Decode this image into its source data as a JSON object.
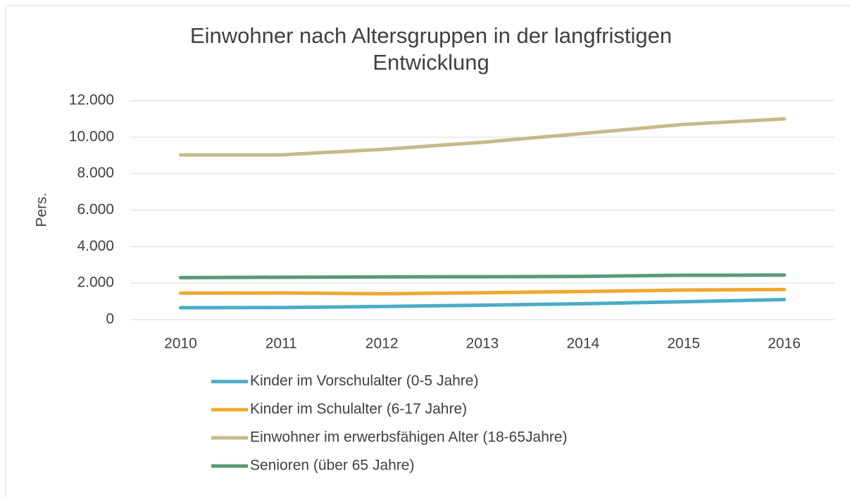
{
  "chart_data": {
    "type": "line",
    "title": "Einwohner nach Altersgruppen in der langfristigen Entwicklung",
    "y_label": "Pers.",
    "categories": [
      "2010",
      "2011",
      "2012",
      "2013",
      "2014",
      "2015",
      "2016"
    ],
    "series": [
      {
        "name": "Kinder im Vorschulalter (0-5 Jahre)",
        "color": "#4bacc6",
        "values": [
          650,
          660,
          720,
          790,
          870,
          980,
          1100
        ]
      },
      {
        "name": "Kinder im Schulalter (6-17 Jahre)",
        "color": "#f0a830",
        "values": [
          1450,
          1460,
          1420,
          1470,
          1540,
          1620,
          1650
        ]
      },
      {
        "name": "Einwohner im erwerbsfähigen Alter (18-65Jahre)",
        "color": "#c9b98a",
        "values": [
          9030,
          9030,
          9330,
          9720,
          10200,
          10700,
          11000
        ]
      },
      {
        "name": "Senioren (über 65 Jahre)",
        "color": "#5a9a76",
        "values": [
          2300,
          2320,
          2340,
          2350,
          2370,
          2430,
          2440
        ]
      }
    ],
    "ylim": [
      0,
      12000
    ],
    "yticks": [
      0,
      {
        "value": 2000,
        "label": "2.000"
      },
      {
        "value": 4000,
        "label": "4.000"
      },
      {
        "value": 6000,
        "label": "6.000"
      },
      {
        "value": 8000,
        "label": "8.000"
      },
      {
        "value": 10000,
        "label": "10.000"
      },
      {
        "value": 12000,
        "label": "12.000"
      }
    ],
    "grid": true,
    "legend": "bottom"
  }
}
